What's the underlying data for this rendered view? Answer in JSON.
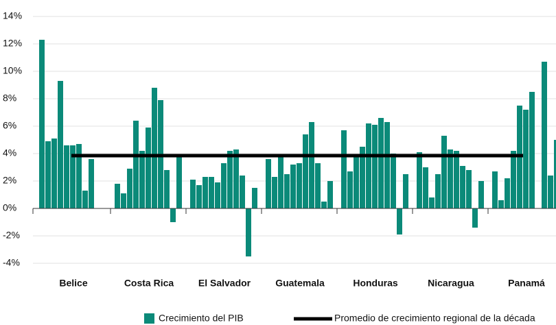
{
  "chart_data": {
    "type": "grouped-bar",
    "categories": [
      "Belice",
      "Costa Rica",
      "El Salvador",
      "Guatemala",
      "Honduras",
      "Nicaragua",
      "Panamá"
    ],
    "series": [
      {
        "name": "Crecimiento del PIB",
        "color": "#0b8a79",
        "values": [
          [
            12.3,
            4.9,
            5.1,
            9.3,
            4.6,
            4.6,
            4.7,
            1.3,
            3.6,
            null,
            null
          ],
          [
            1.8,
            1.1,
            2.9,
            6.4,
            4.2,
            5.9,
            8.8,
            7.9,
            2.8,
            -1.0,
            3.9
          ],
          [
            2.1,
            1.7,
            2.3,
            2.3,
            1.9,
            3.3,
            4.2,
            4.3,
            2.4,
            -3.5,
            1.5
          ],
          [
            3.6,
            2.3,
            3.9,
            2.5,
            3.2,
            3.3,
            5.4,
            6.3,
            3.3,
            0.5,
            2.0
          ],
          [
            5.7,
            2.7,
            3.8,
            4.5,
            6.2,
            6.1,
            6.6,
            6.3,
            4.0,
            -1.9,
            2.5
          ],
          [
            4.1,
            3.0,
            0.8,
            2.5,
            5.3,
            4.3,
            4.2,
            3.1,
            2.8,
            -1.4,
            2.0
          ],
          [
            2.7,
            0.6,
            2.2,
            4.2,
            7.5,
            7.2,
            8.5,
            null,
            10.7,
            2.4,
            5.0
          ]
        ]
      }
    ],
    "average": {
      "name": "Promedio de crecimiento regional de la década",
      "value": 3.85,
      "color": "#000000"
    },
    "ylim": [
      -4,
      14
    ],
    "yticks": [
      {
        "value": -4,
        "label": "-4%"
      },
      {
        "value": -2,
        "label": "-2%"
      },
      {
        "value": 0,
        "label": "0%"
      },
      {
        "value": 2,
        "label": "2%"
      },
      {
        "value": 4,
        "label": "4%"
      },
      {
        "value": 6,
        "label": "6%"
      },
      {
        "value": 8,
        "label": "8%"
      },
      {
        "value": 10,
        "label": "10%"
      },
      {
        "value": 12,
        "label": "12%"
      },
      {
        "value": 14,
        "label": "14%"
      }
    ],
    "grid": true
  }
}
